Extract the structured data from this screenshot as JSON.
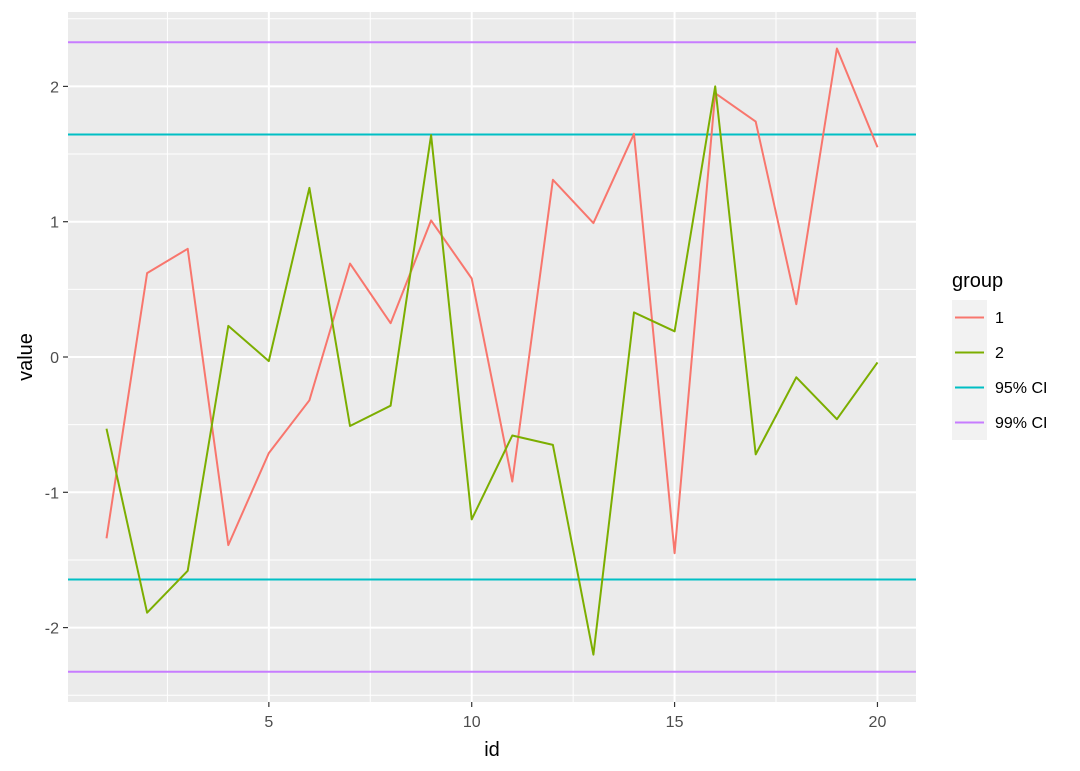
{
  "chart_data": {
    "type": "line",
    "xlabel": "id",
    "ylabel": "value",
    "xlim": [
      0.05,
      20.95
    ],
    "ylim": [
      -2.55,
      2.55
    ],
    "x_ticks": [
      5,
      10,
      15,
      20
    ],
    "y_ticks": [
      -2,
      -1,
      0,
      1,
      2
    ],
    "x_tick_labels": [
      "5",
      "10",
      "15",
      "20"
    ],
    "y_tick_labels": [
      "-2",
      "-1",
      "0",
      "1",
      "2"
    ],
    "grid": true,
    "legend": {
      "title": "group",
      "position": "right"
    },
    "x": [
      1,
      2,
      3,
      4,
      5,
      6,
      7,
      8,
      9,
      10,
      11,
      12,
      13,
      14,
      15,
      16,
      17,
      18,
      19,
      20
    ],
    "series": [
      {
        "name": "1",
        "color": "#F8766D",
        "values": [
          -1.34,
          0.62,
          0.8,
          -1.39,
          -0.71,
          -0.32,
          0.69,
          0.25,
          1.01,
          0.58,
          -0.92,
          1.31,
          0.99,
          1.65,
          -1.45,
          1.95,
          1.74,
          0.39,
          2.28,
          1.55
        ]
      },
      {
        "name": "2",
        "color": "#7CAE00",
        "values": [
          -0.53,
          -1.89,
          -1.58,
          0.23,
          -0.03,
          1.25,
          -0.51,
          -0.36,
          1.64,
          -1.2,
          -0.58,
          -0.65,
          -2.2,
          0.33,
          0.19,
          2.0,
          -0.72,
          -0.15,
          -0.46,
          -0.04
        ]
      }
    ],
    "hlines": [
      {
        "name": "95% CI",
        "color": "#00BFC4",
        "values": [
          -1.645,
          1.645
        ]
      },
      {
        "name": "99% CI",
        "color": "#C77CFF",
        "values": [
          -2.326,
          2.326
        ]
      }
    ]
  }
}
